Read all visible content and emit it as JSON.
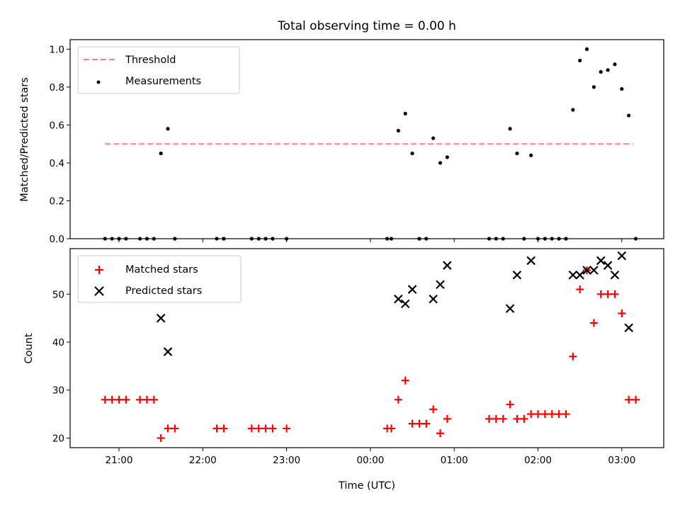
{
  "chart_data": [
    {
      "type": "scatter",
      "title": "Total observing time = 0.00 h",
      "xlabel": "",
      "ylabel": "Matched/Predicted stars",
      "ylim": [
        0,
        1.05
      ],
      "yticks": [
        "0.0",
        "0.2",
        "0.4",
        "0.6",
        "0.8",
        "1.0"
      ],
      "legend_position": "upper-left",
      "threshold": {
        "name": "Threshold",
        "value": 0.5,
        "x_range": [
          "20:50",
          "03:08"
        ],
        "color": "#ff7f7f"
      },
      "series": [
        {
          "name": "Measurements",
          "color": "#000000",
          "x": [
            "20:50",
            "20:55",
            "21:00",
            "21:05",
            "21:15",
            "21:20",
            "21:25",
            "21:30",
            "21:35",
            "21:40",
            "22:10",
            "22:15",
            "22:35",
            "22:40",
            "22:45",
            "22:50",
            "23:00",
            "00:12",
            "00:15",
            "00:20",
            "00:25",
            "00:30",
            "00:35",
            "00:40",
            "00:45",
            "00:50",
            "00:55",
            "01:25",
            "01:30",
            "01:35",
            "01:40",
            "01:45",
            "01:50",
            "01:55",
            "02:00",
            "02:05",
            "02:10",
            "02:15",
            "02:20",
            "02:25",
            "02:30",
            "02:35",
            "02:40",
            "02:45",
            "02:50",
            "02:55",
            "03:00",
            "03:05",
            "03:10"
          ],
          "y": [
            0,
            0,
            0,
            0,
            0,
            0,
            0,
            0.45,
            0.58,
            0,
            0,
            0,
            0,
            0,
            0,
            0,
            0,
            0,
            0,
            0.57,
            0.66,
            0.45,
            0,
            0,
            0.53,
            0.4,
            0.43,
            0,
            0,
            0,
            0.58,
            0.45,
            0,
            0.44,
            0,
            0,
            0,
            0,
            0,
            0.68,
            0.94,
            1.0,
            0.8,
            0.88,
            0.89,
            0.92,
            0.79,
            0.65,
            0
          ]
        }
      ]
    },
    {
      "type": "scatter",
      "title": "",
      "xlabel": "Time (UTC)",
      "ylabel": "Count",
      "ylim": [
        18,
        59.5
      ],
      "yticks": [
        "20",
        "30",
        "40",
        "50"
      ],
      "xlim": [
        "20:25",
        "03:30"
      ],
      "xticks": [
        "21:00",
        "22:00",
        "23:00",
        "00:00",
        "01:00",
        "02:00",
        "03:00"
      ],
      "legend_position": "upper-left",
      "series": [
        {
          "name": "Matched stars",
          "color": "#ff0000",
          "marker": "plus",
          "x": [
            "20:50",
            "20:55",
            "21:00",
            "21:05",
            "21:15",
            "21:20",
            "21:25",
            "21:30",
            "21:35",
            "21:40",
            "22:10",
            "22:15",
            "22:35",
            "22:40",
            "22:45",
            "22:50",
            "23:00",
            "00:12",
            "00:15",
            "00:20",
            "00:25",
            "00:30",
            "00:35",
            "00:40",
            "00:45",
            "00:50",
            "00:55",
            "01:25",
            "01:30",
            "01:35",
            "01:40",
            "01:45",
            "01:50",
            "01:55",
            "02:00",
            "02:05",
            "02:10",
            "02:15",
            "02:20",
            "02:25",
            "02:30",
            "02:35",
            "02:40",
            "02:45",
            "02:50",
            "02:55",
            "03:00",
            "03:05",
            "03:10"
          ],
          "y": [
            28,
            28,
            28,
            28,
            28,
            28,
            28,
            20,
            22,
            22,
            22,
            22,
            22,
            22,
            22,
            22,
            22,
            22,
            22,
            28,
            32,
            23,
            23,
            23,
            26,
            21,
            24,
            24,
            24,
            24,
            27,
            24,
            24,
            25,
            25,
            25,
            25,
            25,
            25,
            37,
            51,
            55,
            44,
            50,
            50,
            50,
            46,
            28,
            28
          ]
        },
        {
          "name": "Predicted stars",
          "color": "#000000",
          "marker": "x",
          "x": [
            "21:30",
            "21:35",
            "00:20",
            "00:25",
            "00:30",
            "00:45",
            "00:50",
            "00:55",
            "01:40",
            "01:45",
            "01:55",
            "02:25",
            "02:30",
            "02:35",
            "02:40",
            "02:45",
            "02:50",
            "02:55",
            "03:00",
            "03:05"
          ],
          "y": [
            45,
            38,
            49,
            48,
            51,
            49,
            52,
            56,
            47,
            54,
            57,
            54,
            54,
            55,
            55,
            57,
            56,
            54,
            58,
            43
          ]
        }
      ]
    }
  ]
}
